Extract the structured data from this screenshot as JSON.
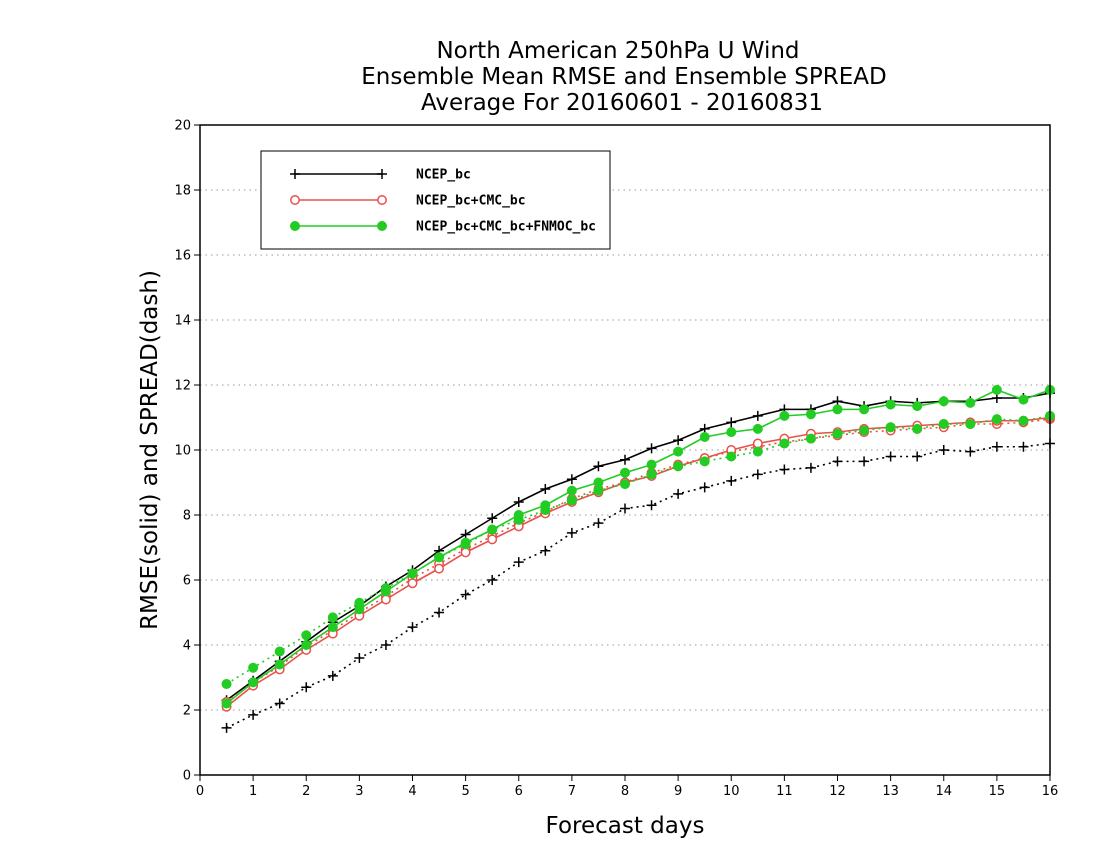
{
  "chart_data": {
    "type": "line",
    "title_lines": [
      "North American 250hPa U Wind",
      "Ensemble Mean RMSE and Ensemble SPREAD",
      "Average For 20160601 - 20160831"
    ],
    "xlabel": "Forecast days",
    "ylabel": "RMSE(solid) and SPREAD(dash)",
    "xlim": [
      0,
      16
    ],
    "ylim": [
      0,
      20
    ],
    "xticks": [
      0,
      1,
      2,
      3,
      4,
      5,
      6,
      7,
      8,
      9,
      10,
      11,
      12,
      13,
      14,
      15,
      16
    ],
    "yticks": [
      0,
      2,
      4,
      6,
      8,
      10,
      12,
      14,
      16,
      18,
      20
    ],
    "grid": "horizontal dotted",
    "legend_position": "top-left",
    "x": [
      0.5,
      1,
      1.5,
      2,
      2.5,
      3,
      3.5,
      4,
      4.5,
      5,
      5.5,
      6,
      6.5,
      7,
      7.5,
      8,
      8.5,
      9,
      9.5,
      10,
      10.5,
      11,
      11.5,
      12,
      12.5,
      13,
      13.5,
      14,
      14.5,
      15,
      15.5,
      16
    ],
    "series": [
      {
        "name": "NCEP_bc",
        "color": "#000000",
        "marker": "plus",
        "rmse": [
          2.3,
          2.9,
          3.5,
          4.1,
          4.7,
          5.2,
          5.8,
          6.3,
          6.9,
          7.4,
          7.9,
          8.4,
          8.8,
          9.1,
          9.5,
          9.7,
          10.05,
          10.3,
          10.65,
          10.85,
          11.05,
          11.25,
          11.25,
          11.5,
          11.35,
          11.5,
          11.45,
          11.5,
          11.5,
          11.6,
          11.6,
          11.75
        ],
        "spread": [
          1.45,
          1.85,
          2.2,
          2.7,
          3.05,
          3.6,
          4.0,
          4.55,
          5.0,
          5.55,
          6.0,
          6.55,
          6.9,
          7.45,
          7.75,
          8.2,
          8.3,
          8.65,
          8.85,
          9.05,
          9.25,
          9.4,
          9.45,
          9.65,
          9.65,
          9.8,
          9.8,
          10.0,
          9.95,
          10.1,
          10.1,
          10.2
        ]
      },
      {
        "name": "NCEP_bc+CMC_bc",
        "color": "#e8504a",
        "marker": "open-circle",
        "rmse": [
          2.1,
          2.75,
          3.25,
          3.85,
          4.35,
          4.9,
          5.4,
          5.9,
          6.35,
          6.85,
          7.25,
          7.65,
          8.05,
          8.4,
          8.7,
          9.0,
          9.2,
          9.5,
          9.75,
          10.0,
          10.2,
          10.35,
          10.5,
          10.55,
          10.65,
          10.7,
          10.75,
          10.8,
          10.85,
          10.9,
          10.9,
          11.0
        ],
        "spread": [
          2.25,
          2.85,
          3.35,
          3.95,
          4.45,
          5.0,
          5.5,
          6.05,
          6.5,
          6.95,
          7.35,
          7.75,
          8.1,
          8.5,
          8.8,
          9.0,
          9.3,
          9.55,
          9.75,
          9.95,
          10.1,
          10.25,
          10.35,
          10.45,
          10.55,
          10.6,
          10.65,
          10.7,
          10.8,
          10.8,
          10.85,
          10.95
        ]
      },
      {
        "name": "NCEP_bc+CMC_bc+FNMOC_bc",
        "color": "#22cc22",
        "marker": "filled-circle",
        "rmse": [
          2.2,
          2.85,
          3.4,
          4.0,
          4.55,
          5.1,
          5.65,
          6.2,
          6.7,
          7.15,
          7.55,
          8.0,
          8.3,
          8.75,
          9.0,
          9.3,
          9.55,
          9.95,
          10.4,
          10.55,
          10.65,
          11.05,
          11.1,
          11.25,
          11.25,
          11.4,
          11.35,
          11.5,
          11.45,
          11.85,
          11.55,
          11.85
        ],
        "spread": [
          2.8,
          3.3,
          3.8,
          4.3,
          4.85,
          5.3,
          5.75,
          6.2,
          6.7,
          7.1,
          7.55,
          7.85,
          8.15,
          8.45,
          8.75,
          8.95,
          9.25,
          9.5,
          9.65,
          9.8,
          9.95,
          10.2,
          10.35,
          10.5,
          10.6,
          10.7,
          10.65,
          10.8,
          10.8,
          10.95,
          10.9,
          11.05
        ]
      }
    ]
  }
}
